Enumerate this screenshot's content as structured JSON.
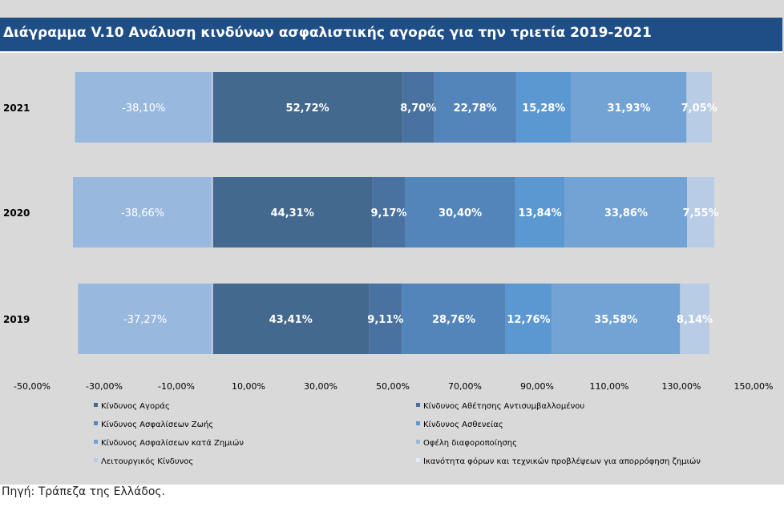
{
  "title": "Διάγραμμα V.10 Ανάλυση κινδύνων ασφαλιστικής αγοράς για την τριετία 2019-2021",
  "source": "Πηγή: Τράπεζα της Ελλάδος.",
  "chart_data": {
    "type": "bar",
    "orientation": "horizontal",
    "stacked": true,
    "categories": [
      "2021",
      "2020",
      "2019"
    ],
    "xlim": [
      -50,
      150
    ],
    "x_ticks": [
      "-50,00%",
      "-30,00%",
      "-10,00%",
      "10,00%",
      "30,00%",
      "50,00%",
      "70,00%",
      "90,00%",
      "110,00%",
      "130,00%",
      "150,00%"
    ],
    "series": [
      {
        "name": "Κίνδυνος Αγοράς",
        "color": "#44698f",
        "values": [
          52.72,
          44.31,
          43.41
        ],
        "labels": [
          "52,72%",
          "44,31%",
          "43,41%"
        ]
      },
      {
        "name": "Κίνδυνος Αθέτησης Αντισυμβαλλομένου",
        "color": "#4a72a0",
        "values": [
          8.7,
          9.17,
          9.11
        ],
        "labels": [
          "8,70%",
          "9,17%",
          "9,11%"
        ]
      },
      {
        "name": "Κίνδυνος Ασφαλίσεων Ζωής",
        "color": "#5385ba",
        "values": [
          22.78,
          30.4,
          28.76
        ],
        "labels": [
          "22,78%",
          "30,40%",
          "28,76%"
        ]
      },
      {
        "name": "Κίνδυνος Ασθενείας",
        "color": "#5b98d2",
        "values": [
          15.28,
          13.84,
          12.76
        ],
        "labels": [
          "15,28%",
          "13,84%",
          "12,76%"
        ]
      },
      {
        "name": "Κίνδυνος Ασφαλίσεων κατά Ζημιών",
        "color": "#73a2d4",
        "values": [
          31.93,
          33.86,
          35.58
        ],
        "labels": [
          "31,93%",
          "33,86%",
          "35,58%"
        ]
      },
      {
        "name": "Οφέλη διαφοροποίησης",
        "color": "#99b8de",
        "values": [
          -38.1,
          -38.66,
          -37.27
        ],
        "labels": [
          "-38,10%",
          "-38,66%",
          "-37,27%"
        ]
      },
      {
        "name": "Λειτουργικός Κίνδυνος",
        "color": "#b8cce6",
        "values": [
          7.05,
          7.55,
          8.14
        ],
        "labels": [
          "7,05%",
          "7,55%",
          "8,14%"
        ]
      },
      {
        "name": "Ικανότητα φόρων και τεχνικών προβλέψεων για απορρόφηση ζημιών",
        "color": "#e4ecf7",
        "values": [
          null,
          null,
          null
        ],
        "labels": [
          "",
          "",
          ""
        ]
      }
    ],
    "legend_position": "bottom"
  }
}
